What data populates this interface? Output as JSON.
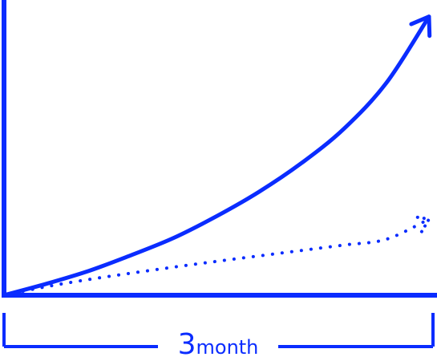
{
  "chart_data": {
    "type": "line",
    "title": "",
    "xlabel": "",
    "ylabel": "",
    "grid": false,
    "legend": "none",
    "duration_label": {
      "number": "3",
      "unit": "month"
    },
    "colors": {
      "accent": "#0a2cff",
      "background": "#ffffff"
    },
    "series": [
      {
        "style": "solid-with-arrow",
        "x": [
          0,
          0.1,
          0.2,
          0.3,
          0.4,
          0.5,
          0.6,
          0.7,
          0.8,
          0.9,
          1.0
        ],
        "y": [
          0,
          0.04,
          0.085,
          0.14,
          0.2,
          0.275,
          0.36,
          0.46,
          0.58,
          0.74,
          0.97
        ]
      },
      {
        "style": "dotted-with-arrow",
        "x": [
          0,
          0.1,
          0.2,
          0.3,
          0.4,
          0.5,
          0.6,
          0.7,
          0.8,
          0.9,
          1.0
        ],
        "y": [
          0,
          0.03,
          0.055,
          0.077,
          0.098,
          0.118,
          0.137,
          0.156,
          0.175,
          0.195,
          0.265
        ]
      }
    ]
  }
}
